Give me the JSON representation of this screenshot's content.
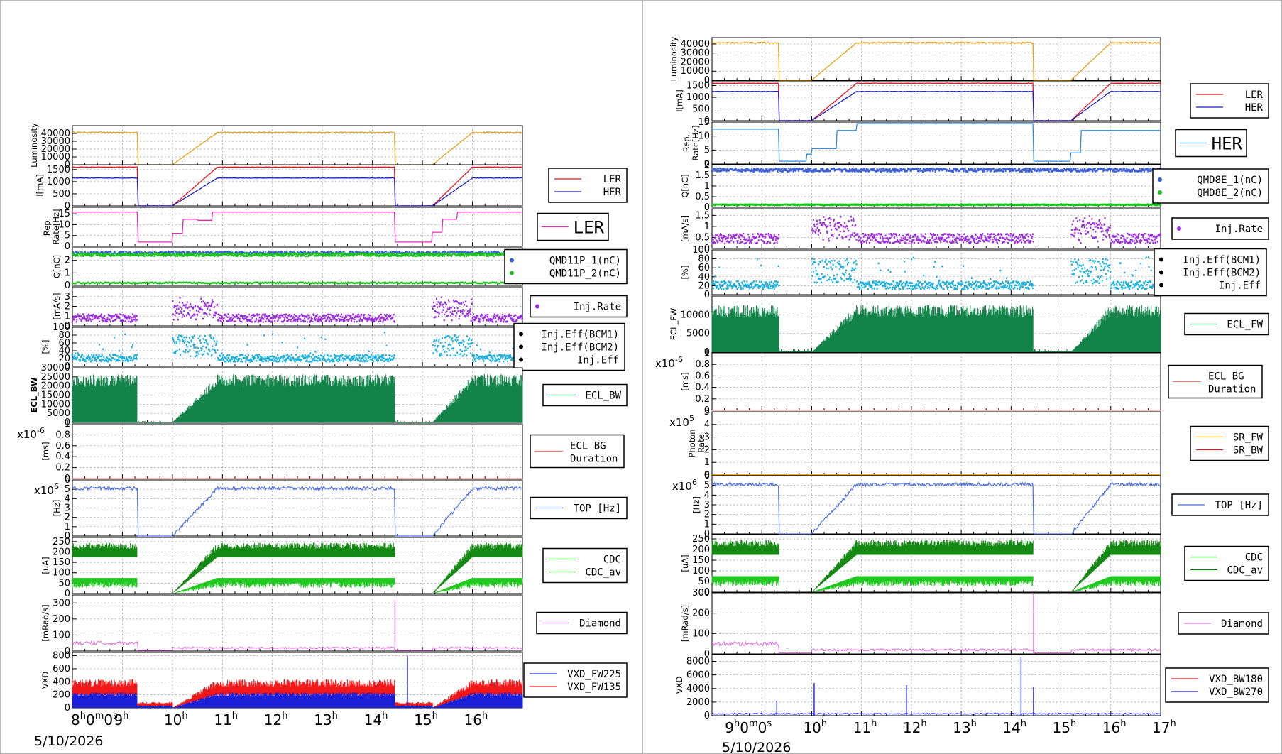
{
  "date": "5/10/2026",
  "colors": {
    "lumi": "#e6a316",
    "ler": "#e8141e",
    "her": "#1b1fc2",
    "rate_left": "#e62bb5",
    "rate_right": "#2e8be0",
    "q1": "#3a5fd6",
    "q2": "#1cc21c",
    "inj": "#9b2ce0",
    "eff": "#19b0e0",
    "ecl": "#12844a",
    "eclbg": "#f07a7a",
    "sr_fw": "#f0a000",
    "sr_bw": "#e8141e",
    "top": "#4a6ee8",
    "cdc": "#20c820",
    "cdc_av": "#148a14",
    "diamond": "#e07ae0",
    "vxd_fw225": "#1b1fd8",
    "vxd_fw135": "#f01818",
    "vxd_bw180": "#e8141e",
    "vxd_bw270": "#1b1fd8"
  },
  "left": {
    "time_labels": [
      {
        "main": "8",
        "sup": "h",
        "tail": "0",
        "sup2": "m",
        "tail2": "0",
        "sup3": "s"
      },
      {
        "main": "9",
        "sup": "h"
      },
      {
        "main": "10",
        "sup": "h"
      },
      {
        "main": "11",
        "sup": "h"
      },
      {
        "main": "12",
        "sup": "h"
      },
      {
        "main": "13",
        "sup": "h"
      },
      {
        "main": "14",
        "sup": "h"
      },
      {
        "main": "15",
        "sup": "h"
      },
      {
        "main": "16",
        "sup": "h"
      }
    ]
  },
  "right": {
    "time_labels": [
      {
        "main": "9",
        "sup": "h",
        "tail": "0",
        "sup2": "m",
        "tail2": "0",
        "sup3": "s"
      },
      {
        "main": "10",
        "sup": "h"
      },
      {
        "main": "11",
        "sup": "h"
      },
      {
        "main": "12",
        "sup": "h"
      },
      {
        "main": "13",
        "sup": "h"
      },
      {
        "main": "14",
        "sup": "h"
      },
      {
        "main": "15",
        "sup": "h"
      },
      {
        "main": "16",
        "sup": "h"
      },
      {
        "main": "17",
        "sup": "h"
      }
    ]
  },
  "chart_data": [
    {
      "id": "left",
      "type": "line",
      "title": "",
      "x": {
        "start_hour": 8.0,
        "end_hour": 17.0,
        "unit": "hour"
      },
      "panels": [
        {
          "key": "lumi",
          "ylabel": "Luminosity",
          "ylim": [
            0,
            50000
          ],
          "ticks": [
            "0",
            "10000",
            "20000",
            "30000",
            "40000"
          ],
          "series": [
            {
              "name": "",
              "color_key": "lumi"
            }
          ]
        },
        {
          "key": "current",
          "ylabel": "I[mA]",
          "ylim": [
            0,
            1700
          ],
          "ticks": [
            "0",
            "500",
            "1000",
            "1500"
          ],
          "series": [
            {
              "name": "LER",
              "color_key": "ler"
            },
            {
              "name": "HER",
              "color_key": "her"
            }
          ]
        },
        {
          "key": "rate",
          "ylabel": "Rep. Rate[Hz]",
          "ylim": [
            0,
            18
          ],
          "ticks": [
            "0",
            "5",
            "10",
            "15"
          ],
          "series": [
            {
              "name": "LER",
              "color_key": "rate_left"
            }
          ],
          "legend_style": "big"
        },
        {
          "key": "charge",
          "ylabel": "Q[nC]",
          "ylim": [
            0,
            3
          ],
          "ticks": [
            "0",
            "1",
            "2"
          ],
          "series": [
            {
              "name": "QMD11P_1(nC)",
              "color_key": "q1"
            },
            {
              "name": "QMD11P_2(nC)",
              "color_key": "q2"
            }
          ],
          "legend_style": "dots"
        },
        {
          "key": "injrate",
          "ylabel": "[mA/s]",
          "ylim": [
            0,
            4
          ],
          "ticks": [
            "0",
            "1",
            "2",
            "3"
          ],
          "series": [
            {
              "name": "Inj.Rate",
              "color_key": "inj"
            }
          ],
          "legend_style": "dots"
        },
        {
          "key": "eff",
          "ylabel": "[%]",
          "ylim": [
            0,
            100
          ],
          "ticks": [
            "0",
            "20",
            "40",
            "60",
            "80",
            "100"
          ],
          "series": [
            {
              "name": "Inj.Eff(BCM1)",
              "color_key": "eff"
            },
            {
              "name": "Inj.Eff(BCM2)",
              "color_key": "eff"
            },
            {
              "name": "Inj.Eff",
              "color_key": "eff"
            }
          ],
          "legend_style": "dots"
        },
        {
          "key": "ecl",
          "ylabel": "ECL_BW",
          "ylim": [
            0,
            30000
          ],
          "ticks": [
            "0",
            "5000",
            "10000",
            "15000",
            "20000",
            "25000",
            "30000"
          ],
          "series": [
            {
              "name": "ECL_BW",
              "color_key": "ecl"
            }
          ]
        },
        {
          "key": "eclbg",
          "ylabel": "[ms]",
          "ylim": [
            0,
            1
          ],
          "multiplier": "x10-6",
          "ticks": [
            "0",
            "0.2",
            "0.4",
            "0.6",
            "0.8",
            "1"
          ],
          "series": [
            {
              "name": "ECL BG Duration",
              "color_key": "eclbg"
            }
          ],
          "legend_style": "two-line"
        },
        {
          "key": "top",
          "ylabel": "[Hz]",
          "ylim": [
            0,
            6
          ],
          "multiplier": "x106",
          "ticks": [
            "0",
            "1",
            "2",
            "3",
            "4",
            "5",
            "6"
          ],
          "series": [
            {
              "name": "TOP [Hz]",
              "color_key": "top"
            }
          ]
        },
        {
          "key": "cdc",
          "ylabel": "[uA]",
          "ylim": [
            0,
            270
          ],
          "ticks": [
            "0",
            "50",
            "100",
            "150",
            "200",
            "250"
          ],
          "series": [
            {
              "name": "CDC",
              "color_key": "cdc"
            },
            {
              "name": "CDC_av",
              "color_key": "cdc_av"
            }
          ]
        },
        {
          "key": "diamond",
          "ylabel": "[mRad/s]",
          "ylim": [
            0,
            350
          ],
          "ticks": [
            "0",
            "100",
            "200",
            "300"
          ],
          "series": [
            {
              "name": "Diamond",
              "color_key": "diamond"
            }
          ]
        },
        {
          "key": "vxd",
          "ylabel": "VXD",
          "ylim": [
            0,
            850
          ],
          "ticks": [
            "0",
            "200",
            "400",
            "600",
            "800"
          ],
          "series": [
            {
              "name": "VXD_FW225",
              "color_key": "vxd_fw225"
            },
            {
              "name": "VXD_FW135",
              "color_key": "vxd_fw135"
            }
          ]
        }
      ]
    },
    {
      "id": "right",
      "type": "line",
      "title": "",
      "x": {
        "start_hour": 8.0,
        "end_hour": 17.0,
        "unit": "hour"
      },
      "panels": [
        {
          "key": "lumi",
          "ylabel": "Luminosity",
          "ylim": [
            0,
            47000
          ],
          "ticks": [
            "0",
            "10000",
            "20000",
            "30000",
            "40000"
          ],
          "series": [
            {
              "name": "",
              "color_key": "lumi"
            }
          ]
        },
        {
          "key": "current",
          "ylabel": "I[mA]",
          "ylim": [
            0,
            1700
          ],
          "ticks": [
            "0",
            "500",
            "1000",
            "1500"
          ],
          "series": [
            {
              "name": "LER",
              "color_key": "ler"
            },
            {
              "name": "HER",
              "color_key": "her"
            }
          ]
        },
        {
          "key": "rate",
          "ylabel": "Rep. Rate[Hz]",
          "ylim": [
            0,
            15
          ],
          "ticks": [
            "0",
            "5",
            "10",
            "15"
          ],
          "series": [
            {
              "name": "HER",
              "color_key": "rate_right"
            }
          ],
          "legend_style": "big"
        },
        {
          "key": "charge",
          "ylabel": "Q[nC]",
          "ylim": [
            0,
            2
          ],
          "ticks": [
            "0",
            "0.5",
            "1",
            "1.5",
            "2"
          ],
          "series": [
            {
              "name": "QMD8E_1(nC)",
              "color_key": "q1"
            },
            {
              "name": "QMD8E_2(nC)",
              "color_key": "q2"
            }
          ],
          "legend_style": "dots"
        },
        {
          "key": "injrate",
          "ylabel": "[mA/s]",
          "ylim": [
            0,
            1.8
          ],
          "ticks": [
            "0",
            "0.5",
            "1",
            "1.5"
          ],
          "series": [
            {
              "name": "Inj.Rate",
              "color_key": "inj"
            }
          ],
          "legend_style": "dots"
        },
        {
          "key": "eff",
          "ylabel": "[%]",
          "ylim": [
            0,
            100
          ],
          "ticks": [
            "0",
            "20",
            "40",
            "60",
            "80",
            "100"
          ],
          "series": [
            {
              "name": "Inj.Eff(BCM1)",
              "color_key": "eff"
            },
            {
              "name": "Inj.Eff(BCM2)",
              "color_key": "eff"
            },
            {
              "name": "Inj.Eff",
              "color_key": "eff"
            }
          ],
          "legend_style": "dots"
        },
        {
          "key": "ecl",
          "ylabel": "ECL_FW",
          "ylim": [
            0,
            15000
          ],
          "ticks": [
            "0",
            "5000",
            "10000"
          ],
          "series": [
            {
              "name": "ECL_FW",
              "color_key": "ecl"
            }
          ]
        },
        {
          "key": "eclbg",
          "ylabel": "[ms]",
          "ylim": [
            0,
            1
          ],
          "multiplier": "x10-6",
          "ticks": [
            "0",
            "0.2",
            "0.4",
            "0.6",
            "0.8",
            "1"
          ],
          "series": [
            {
              "name": "ECL BG Duration",
              "color_key": "eclbg"
            }
          ],
          "legend_style": "two-line"
        },
        {
          "key": "photon",
          "ylabel": "Photon Rate",
          "ylim": [
            0,
            5
          ],
          "multiplier": "x105",
          "ticks": [
            "0",
            "1",
            "2",
            "3",
            "4",
            "5"
          ],
          "series": [
            {
              "name": "SR_FW",
              "color_key": "sr_fw"
            },
            {
              "name": "SR_BW",
              "color_key": "sr_bw"
            }
          ]
        },
        {
          "key": "top",
          "ylabel": "[Hz]",
          "ylim": [
            0,
            6
          ],
          "multiplier": "x106",
          "ticks": [
            "0",
            "1",
            "2",
            "3",
            "4",
            "5",
            "6"
          ],
          "series": [
            {
              "name": "TOP [Hz]",
              "color_key": "top"
            }
          ]
        },
        {
          "key": "cdc",
          "ylabel": "[uA]",
          "ylim": [
            0,
            270
          ],
          "ticks": [
            "0",
            "50",
            "100",
            "150",
            "200",
            "250"
          ],
          "series": [
            {
              "name": "CDC",
              "color_key": "cdc"
            },
            {
              "name": "CDC_av",
              "color_key": "cdc_av"
            }
          ]
        },
        {
          "key": "diamond",
          "ylabel": "[mRad/s]",
          "ylim": [
            0,
            300
          ],
          "ticks": [
            "0",
            "100",
            "200",
            "300"
          ],
          "series": [
            {
              "name": "Diamond",
              "color_key": "diamond"
            }
          ]
        },
        {
          "key": "vxd",
          "ylabel": "VXD",
          "ylim": [
            0,
            9000
          ],
          "ticks": [
            "0",
            "2000",
            "4000",
            "6000",
            "8000"
          ],
          "series": [
            {
              "name": "VXD_BW180",
              "color_key": "vxd_bw180"
            },
            {
              "name": "VXD_BW270",
              "color_key": "vxd_bw270"
            }
          ]
        }
      ]
    }
  ]
}
